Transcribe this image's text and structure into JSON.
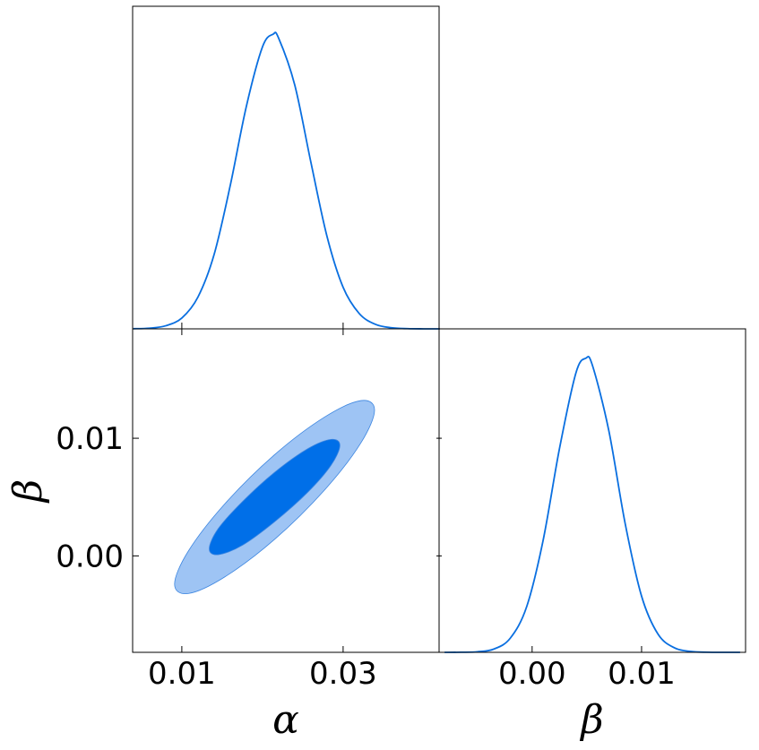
{
  "chart_data": [
    {
      "type": "line",
      "color": "#0a6fe0",
      "x": [
        0.004,
        0.006,
        0.008,
        0.01,
        0.012,
        0.014,
        0.016,
        0.018,
        0.02,
        0.0213,
        0.022,
        0.024,
        0.026,
        0.028,
        0.03,
        0.032,
        0.034,
        0.036,
        0.038,
        0.04,
        0.042
      ],
      "values": [
        0.0005,
        0.0024,
        0.0105,
        0.0368,
        0.108,
        0.252,
        0.486,
        0.755,
        0.957,
        1,
        0.987,
        0.828,
        0.566,
        0.314,
        0.141,
        0.052,
        0.0154,
        0.0037,
        0.0007,
        0.0001,
        0.0
      ],
      "xlim": [
        0.0039,
        0.0419
      ],
      "ylim": [
        0,
        1.095
      ],
      "xticks": [
        0.01,
        0.03
      ]
    },
    {
      "type": "contour",
      "xlabel": "α",
      "ylabel": "β",
      "series": [
        {
          "color": "#9ec4f4",
          "x": [
            0.0339,
            0.0322,
            0.0277,
            0.0215,
            0.0153,
            0.0108,
            0.0091,
            0.0108,
            0.0153,
            0.0215,
            0.0277,
            0.0322
          ],
          "y": [
            0.0124,
            0.0132,
            0.0118,
            0.0086,
            0.0044,
            0.0004,
            -0.0024,
            -0.0032,
            -0.0018,
            0.0014,
            0.0056,
            0.0096
          ]
        },
        {
          "color": "#006fe8",
          "x": [
            0.0296,
            0.0285,
            0.0256,
            0.0215,
            0.0175,
            0.0145,
            0.0134,
            0.0145,
            0.0175,
            0.0215,
            0.0256,
            0.0285
          ],
          "y": [
            0.0094,
            0.0099,
            0.0091,
            0.0071,
            0.0046,
            0.0023,
            0.0006,
            0.0001,
            0.0009,
            0.0029,
            0.0054,
            0.0077
          ]
        }
      ],
      "xlim": [
        0.0039,
        0.0419
      ],
      "ylim": [
        -0.0082,
        0.0193
      ],
      "xticks": [
        0.01,
        0.03
      ],
      "yticks": [
        {
          "value": 0,
          "label": "0.00"
        },
        0.01
      ]
    },
    {
      "type": "line",
      "color": "#0a6fe0",
      "xlabel": "β",
      "x": [
        -0.008,
        -0.0065,
        -0.005,
        -0.0035,
        -0.002,
        -0.0005,
        0.001,
        0.0025,
        0.004,
        0.0049,
        0.0055,
        0.007,
        0.0085,
        0.01,
        0.0115,
        0.013,
        0.0145,
        0.016,
        0.0175,
        0.019
      ],
      "values": [
        0.0,
        0.0003,
        0.0019,
        0.0111,
        0.048,
        0.155,
        0.38,
        0.693,
        0.95,
        1,
        0.977,
        0.755,
        0.438,
        0.191,
        0.062,
        0.0153,
        0.0029,
        0.0004,
        0.0,
        0.0
      ],
      "xlim": [
        -0.0085,
        0.0195
      ],
      "ylim": [
        0,
        1.1
      ],
      "xticks": [
        {
          "value": 0,
          "label": "0.00"
        },
        0.01
      ]
    }
  ]
}
